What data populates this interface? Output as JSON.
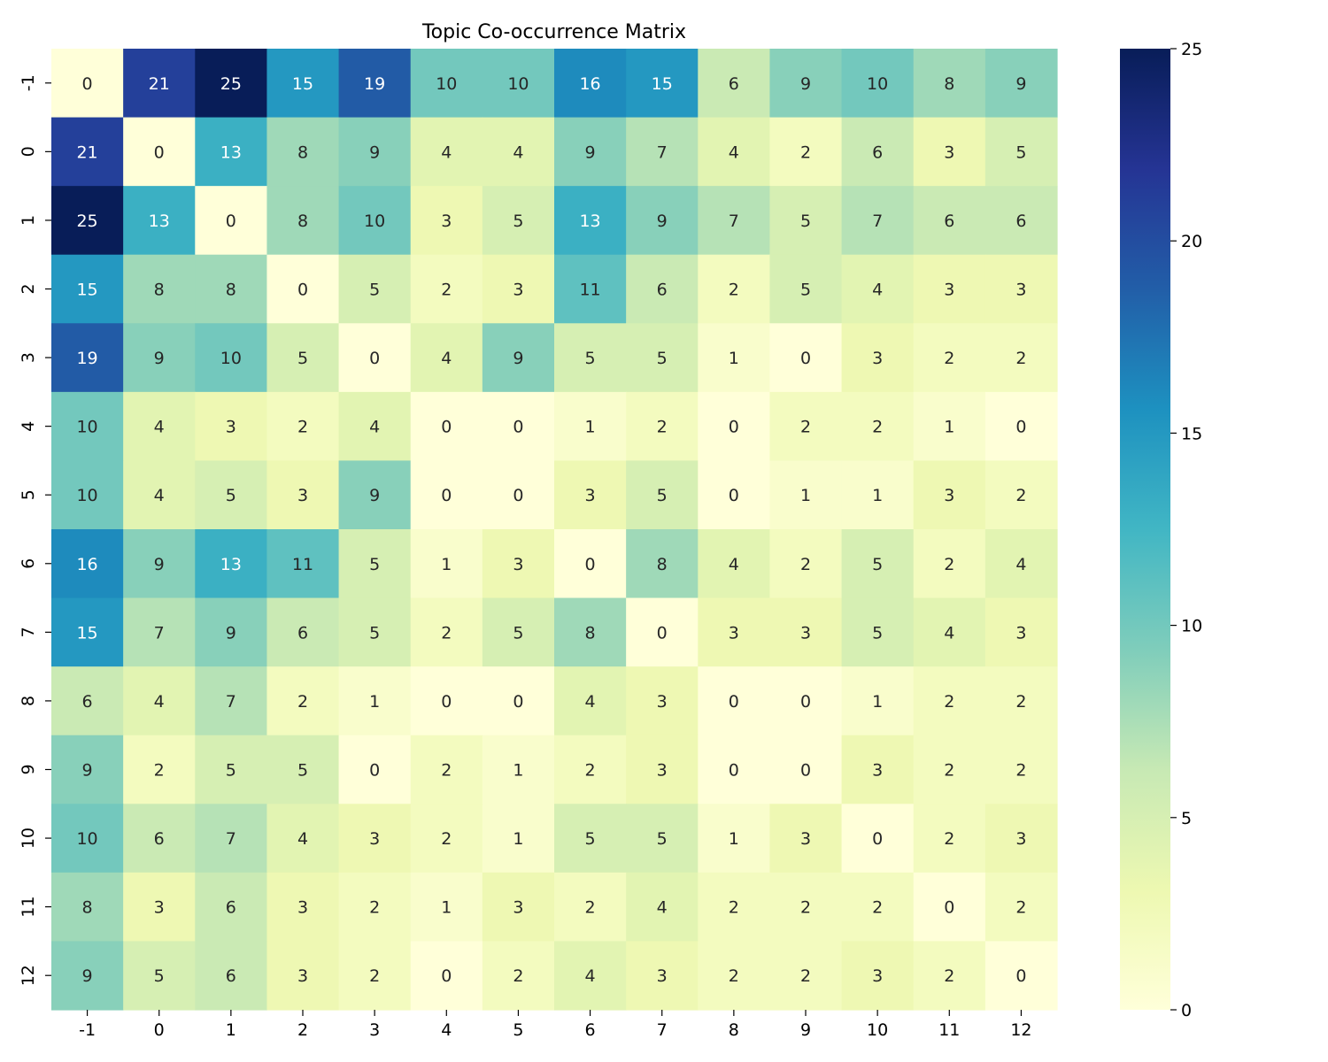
{
  "chart_data": {
    "type": "heatmap",
    "title": "Topic Co-occurrence Matrix",
    "xlabel": "",
    "ylabel": "",
    "x_categories": [
      "-1",
      "0",
      "1",
      "2",
      "3",
      "4",
      "5",
      "6",
      "7",
      "8",
      "9",
      "10",
      "11",
      "12"
    ],
    "y_categories": [
      "-1",
      "0",
      "1",
      "2",
      "3",
      "4",
      "5",
      "6",
      "7",
      "8",
      "9",
      "10",
      "11",
      "12"
    ],
    "values": [
      [
        0,
        21,
        25,
        15,
        19,
        10,
        10,
        16,
        15,
        6,
        9,
        10,
        8,
        9
      ],
      [
        21,
        0,
        13,
        8,
        9,
        4,
        4,
        9,
        7,
        4,
        2,
        6,
        3,
        5
      ],
      [
        25,
        13,
        0,
        8,
        10,
        3,
        5,
        13,
        9,
        7,
        5,
        7,
        6,
        6
      ],
      [
        15,
        8,
        8,
        0,
        5,
        2,
        3,
        11,
        6,
        2,
        5,
        4,
        3,
        3
      ],
      [
        19,
        9,
        10,
        5,
        0,
        4,
        9,
        5,
        5,
        1,
        0,
        3,
        2,
        2
      ],
      [
        10,
        4,
        3,
        2,
        4,
        0,
        0,
        1,
        2,
        0,
        2,
        2,
        1,
        0
      ],
      [
        10,
        4,
        5,
        3,
        9,
        0,
        0,
        3,
        5,
        0,
        1,
        1,
        3,
        2
      ],
      [
        16,
        9,
        13,
        11,
        5,
        1,
        3,
        0,
        8,
        4,
        2,
        5,
        2,
        4
      ],
      [
        15,
        7,
        9,
        6,
        5,
        2,
        5,
        8,
        0,
        3,
        3,
        5,
        4,
        3
      ],
      [
        6,
        4,
        7,
        2,
        1,
        0,
        0,
        4,
        3,
        0,
        0,
        1,
        2,
        2
      ],
      [
        9,
        2,
        5,
        5,
        0,
        2,
        1,
        2,
        3,
        0,
        0,
        3,
        2,
        2
      ],
      [
        10,
        6,
        7,
        4,
        3,
        2,
        1,
        5,
        5,
        1,
        3,
        0,
        2,
        3
      ],
      [
        8,
        3,
        6,
        3,
        2,
        1,
        3,
        2,
        4,
        2,
        2,
        2,
        0,
        2
      ],
      [
        9,
        5,
        6,
        3,
        2,
        0,
        2,
        4,
        3,
        2,
        2,
        3,
        2,
        0
      ]
    ],
    "colormap": "YlGnBu",
    "colorbar": {
      "min": 0,
      "max": 25,
      "ticks": [
        0,
        5,
        10,
        15,
        20,
        25
      ]
    },
    "annotations": true
  }
}
